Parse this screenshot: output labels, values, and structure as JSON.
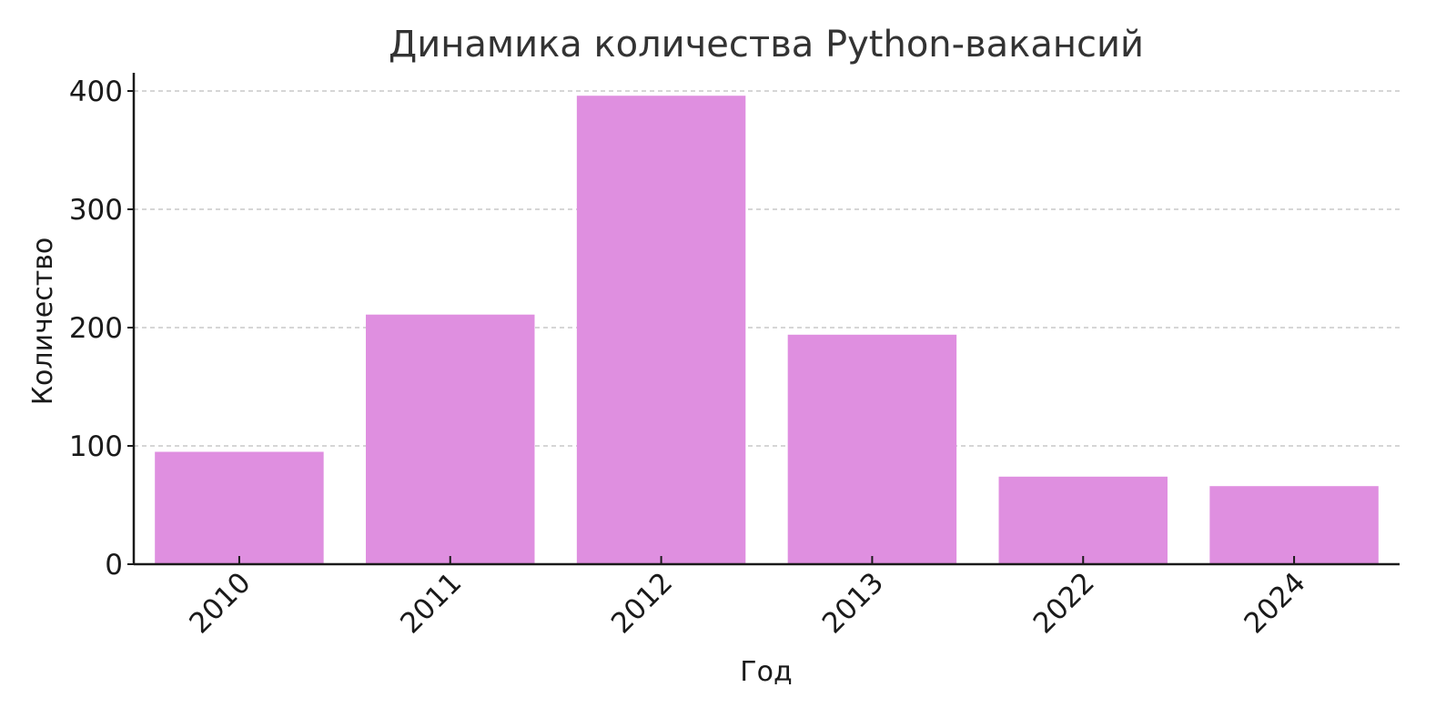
{
  "chart_data": {
    "type": "bar",
    "title": "Динамика количества Python-вакансий",
    "xlabel": "Год",
    "ylabel": "Количество",
    "categories": [
      "2010",
      "2011",
      "2012",
      "2013",
      "2022",
      "2024"
    ],
    "values": [
      95,
      211,
      396,
      194,
      74,
      66
    ],
    "ylim": [
      0,
      415
    ],
    "yticks": [
      0,
      100,
      200,
      300,
      400
    ],
    "grid": "horizontal-dashed",
    "legend": "none",
    "bar_color": "#df8fe0"
  }
}
